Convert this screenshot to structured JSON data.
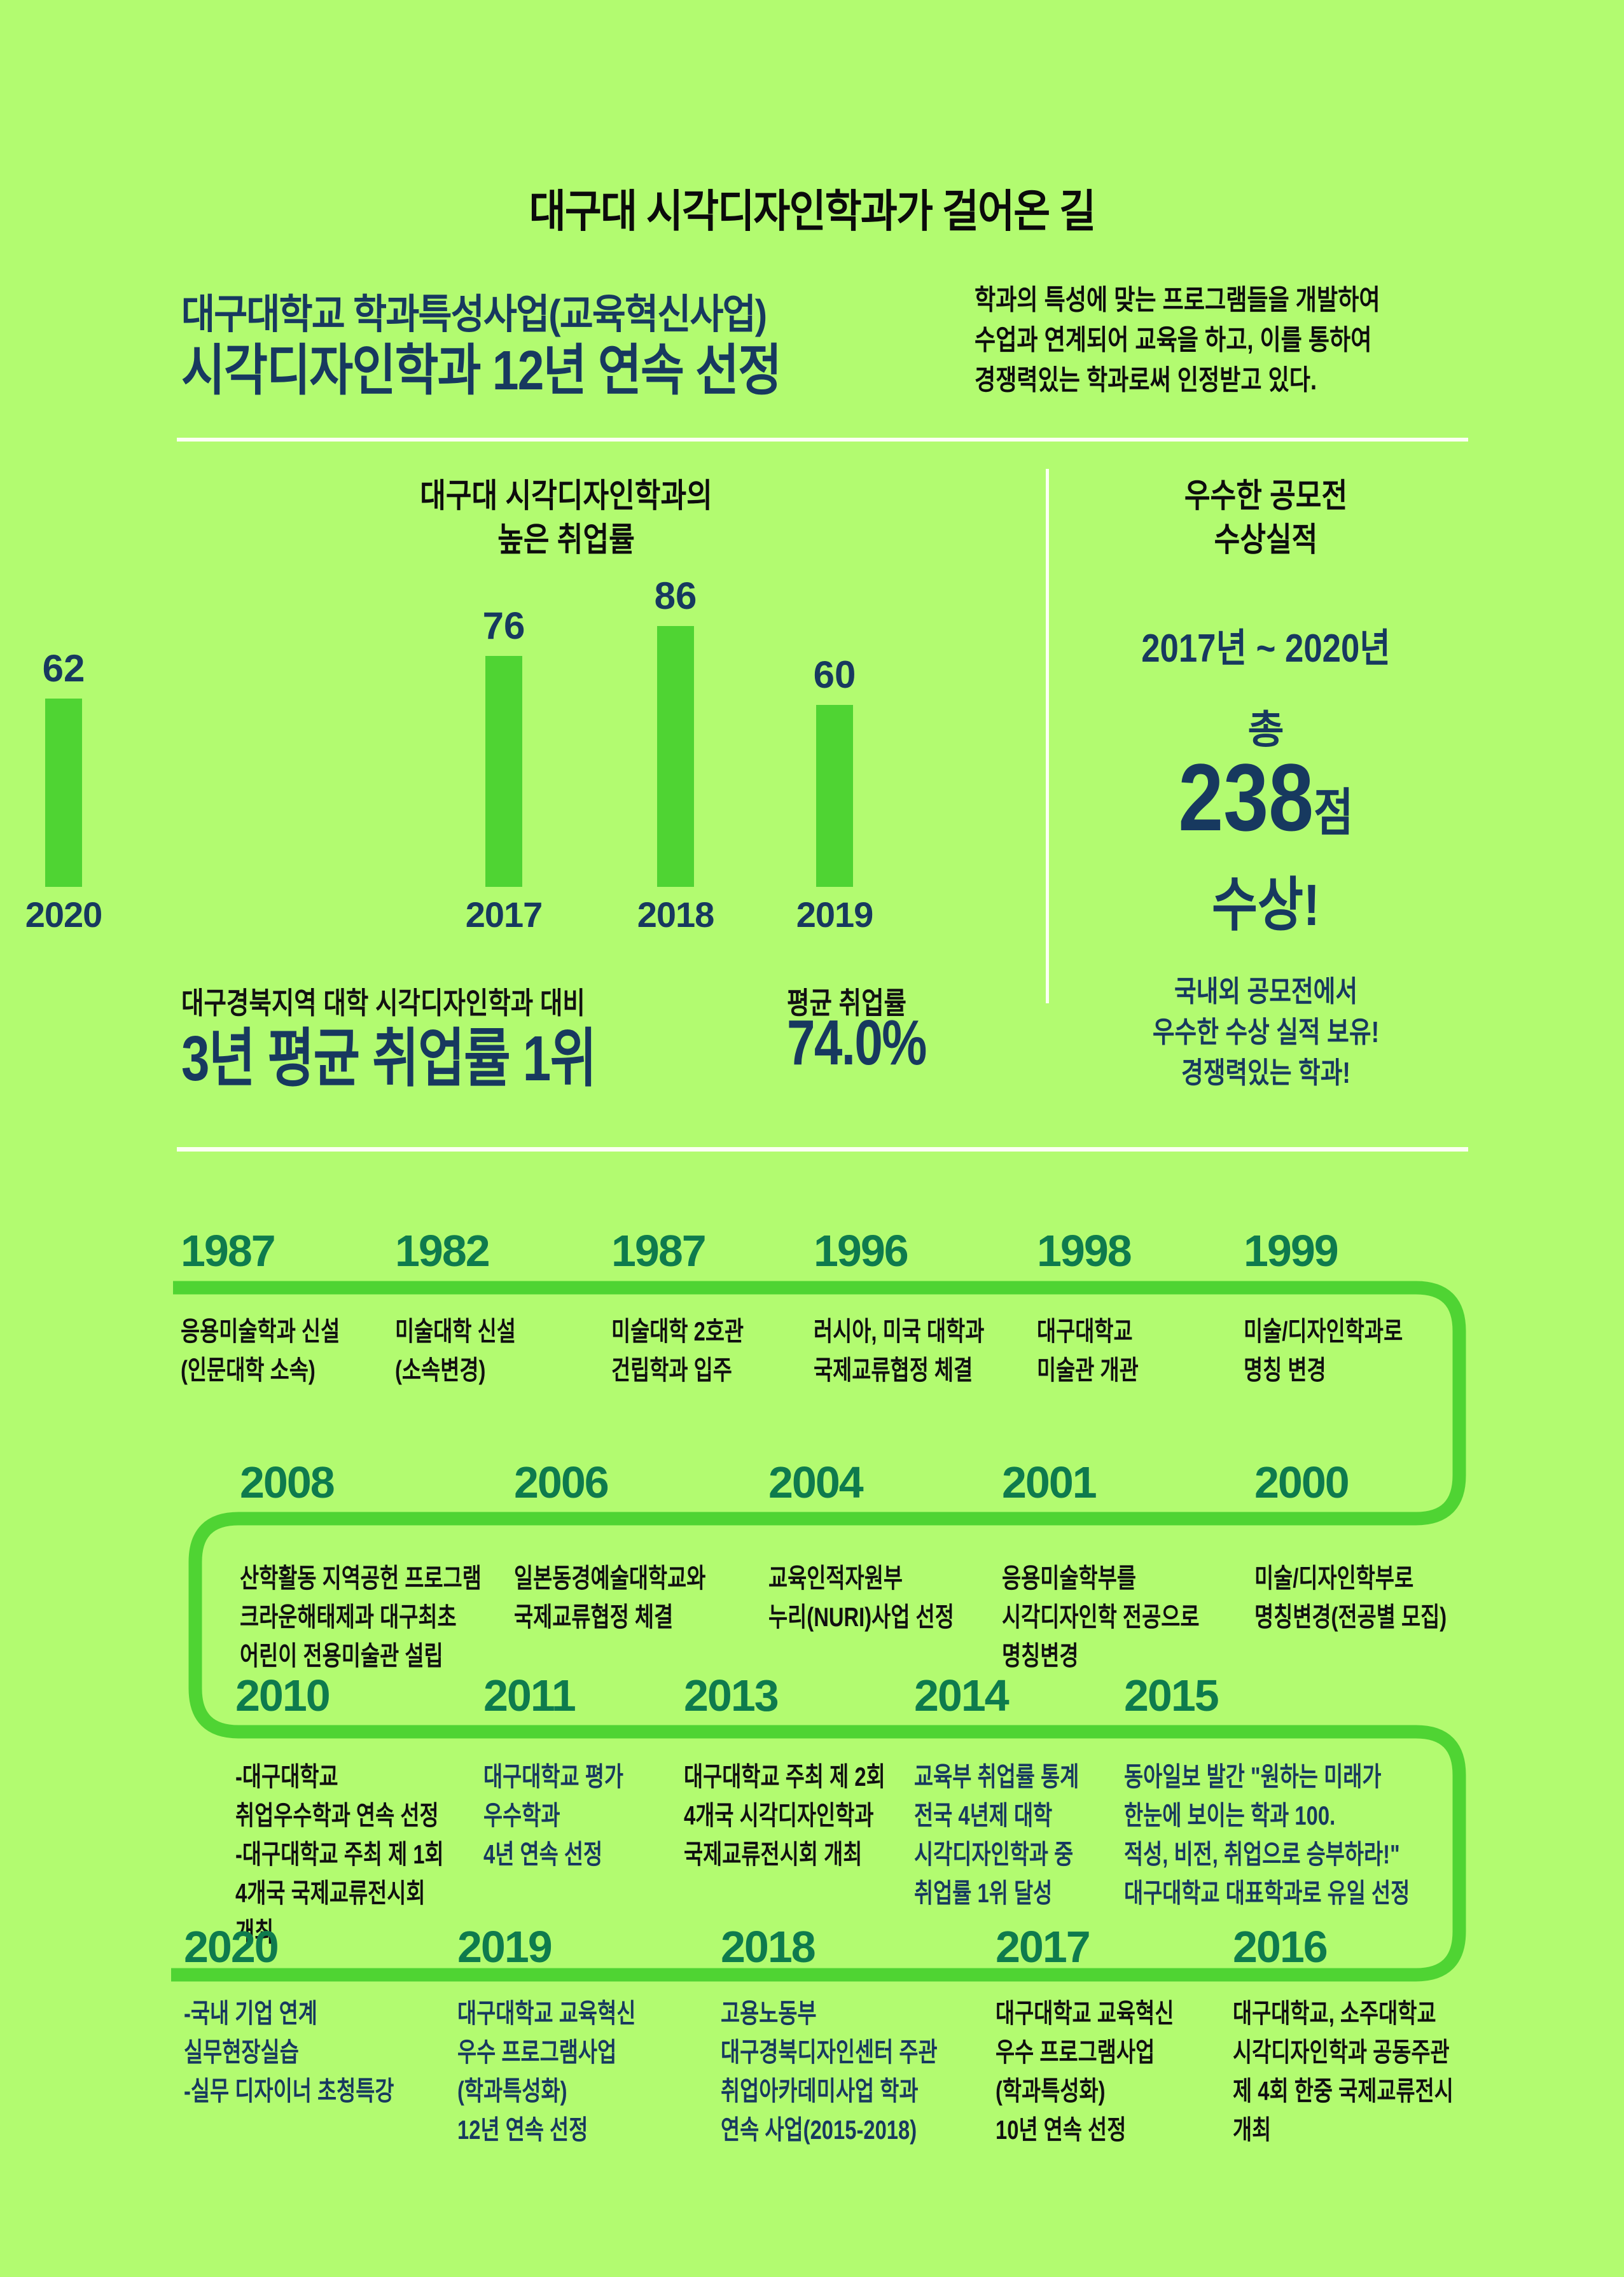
{
  "colors": {
    "background": "#B2FB70",
    "accent_green": "#4FD433",
    "year_green": "#0E7B4D",
    "navy": "#17395F",
    "black": "#0d0d0d",
    "divider_white": "#FBFFF2"
  },
  "page_title": "대구대 시각디자인학과가 걸어온 길",
  "header": {
    "title_line1": "대구대학교 학과특성사업(교육혁신사업)",
    "title_line2": "시각디자인학과 12년 연속 선정",
    "description": "학과의 특성에 맞는 프로그램들을 개발하여\n수업과 연계되어 교육을 하고, 이를 통하여\n경쟁력있는 학과로써 인정받고 있다."
  },
  "chart_data": {
    "type": "bar",
    "title": "대구대 시각디자인학과의\n높은 취업률",
    "categories": [
      "2017",
      "2018",
      "2019",
      "2020"
    ],
    "values": [
      76,
      86,
      60,
      62
    ],
    "xlabel": "",
    "ylabel": "",
    "ylim": [
      0,
      100
    ],
    "grid": false,
    "legend": false,
    "bar_color": "#4FD433",
    "value_labels": "above bars",
    "label_color": "#17395F"
  },
  "stats": {
    "left_label": "대구경북지역 대학 시각디자인학과 대비",
    "left_value": "3년 평균 취업률 1위",
    "right_label": "평균 취업률",
    "right_value": "74.0%"
  },
  "awards": {
    "title": "우수한 공모전\n수상실적",
    "period": "2017년 ~ 2020년",
    "total_label": "총",
    "total_value": "238",
    "total_unit": "점",
    "suffix": "수상!",
    "footer": "국내외 공모전에서\n우수한 수상 실적 보유!\n경쟁력있는 학과!"
  },
  "timeline": {
    "rows": [
      {
        "items": [
          {
            "year": "1987",
            "text": "응용미술학과 신설\n(인문대학 소속)",
            "emphasis": false
          },
          {
            "year": "1982",
            "text": "미술대학 신설\n(소속변경)",
            "emphasis": false
          },
          {
            "year": "1987",
            "text": "미술대학 2호관\n건립학과 입주",
            "emphasis": false
          },
          {
            "year": "1996",
            "text": "러시아, 미국 대학과\n국제교류협정 체결",
            "emphasis": false
          },
          {
            "year": "1998",
            "text": "대구대학교\n미술관 개관",
            "emphasis": false
          },
          {
            "year": "1999",
            "text": "미술/디자인학과로\n명칭 변경",
            "emphasis": false
          }
        ]
      },
      {
        "items": [
          {
            "year": "2008",
            "text": "산학활동 지역공헌 프로그램\n크라운해태제과 대구최초\n어린이 전용미술관 설립",
            "emphasis": false
          },
          {
            "year": "2006",
            "text": "일본동경예술대학교와\n국제교류협정 체결",
            "emphasis": false
          },
          {
            "year": "2004",
            "text": "교육인적자원부\n누리(NURI)사업 선정",
            "emphasis": false
          },
          {
            "year": "2001",
            "text": "응용미술학부를\n시각디자인학 전공으로\n명칭변경",
            "emphasis": false
          },
          {
            "year": "2000",
            "text": "미술/디자인학부로\n명칭변경(전공별 모집)",
            "emphasis": false
          }
        ]
      },
      {
        "items": [
          {
            "year": "2010",
            "text": "-대구대학교\n취업우수학과 연속 선정\n-대구대학교 주최 제 1회\n4개국 국제교류전시회\n개최",
            "emphasis": false
          },
          {
            "year": "2011",
            "text": "대구대학교 평가\n우수학과\n4년 연속 선정",
            "emphasis": true
          },
          {
            "year": "2013",
            "text": "대구대학교 주최 제 2회\n4개국 시각디자인학과\n국제교류전시회 개최",
            "emphasis": false
          },
          {
            "year": "2014",
            "text": "교육부 취업률 통계\n전국 4년제 대학\n시각디자인학과 중\n취업률 1위 달성",
            "emphasis": true
          },
          {
            "year": "2015",
            "text": "동아일보 발간 \"원하는 미래가\n한눈에 보이는 학과 100.\n적성, 비전, 취업으로 승부하라!\"\n대구대학교 대표학과로 유일 선정",
            "emphasis": true
          }
        ]
      },
      {
        "items": [
          {
            "year": "2020",
            "text": "-국내 기업 연계\n실무현장실습\n-실무 디자이너 초청특강",
            "emphasis": true
          },
          {
            "year": "2019",
            "text": "대구대학교 교육혁신\n우수 프로그램사업\n(학과특성화)\n12년 연속 선정",
            "emphasis": true
          },
          {
            "year": "2018",
            "text": "고용노동부\n대구경북디자인센터 주관\n취업아카데미사업 학과\n연속 사업(2015-2018)",
            "emphasis": true
          },
          {
            "year": "2017",
            "text": "대구대학교 교육혁신\n우수 프로그램사업\n(학과특성화)\n10년 연속 선정",
            "emphasis": false
          },
          {
            "year": "2016",
            "text": "대구대학교, 소주대학교\n시각디자인학과 공동주관\n제 4회 한중 국제교류전시\n개최",
            "emphasis": false
          }
        ]
      }
    ]
  }
}
